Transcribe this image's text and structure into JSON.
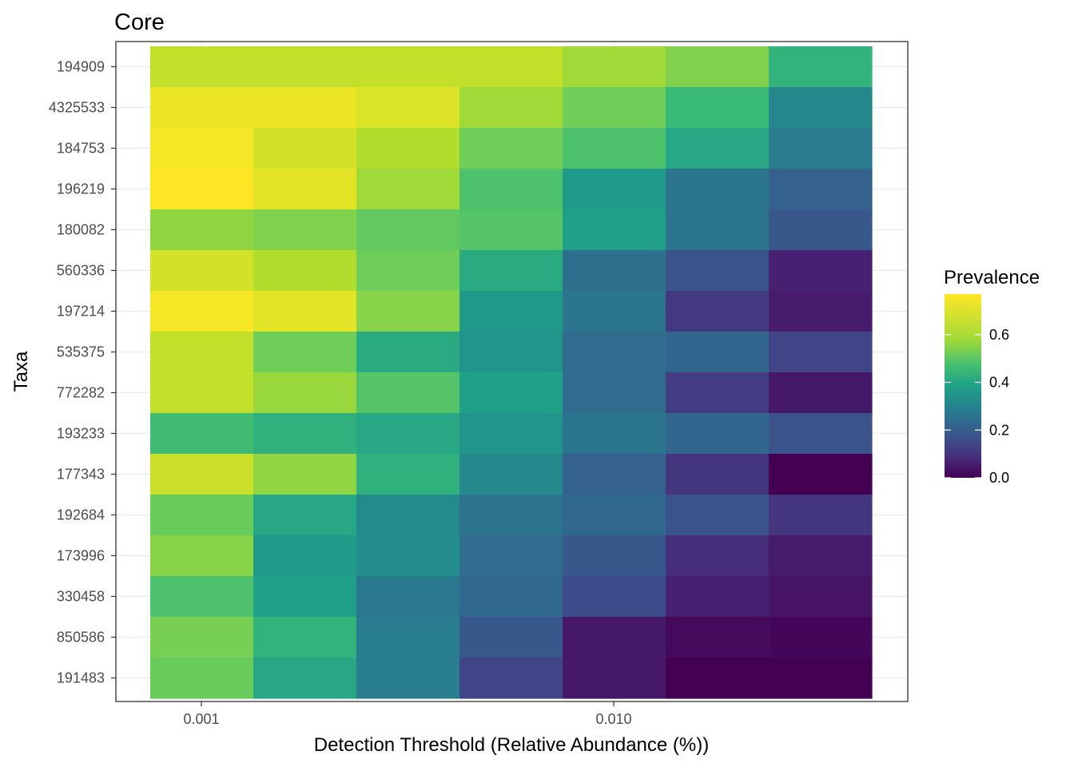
{
  "chart_data": {
    "type": "heatmap",
    "title": "Core",
    "xlabel": "Detection Threshold (Relative Abundance (%))",
    "ylabel": "Taxa",
    "x_scale": "log10",
    "x_ticks": [
      "0.001",
      "0.010"
    ],
    "y_categories": [
      "194909",
      "4325533",
      "184753",
      "196219",
      "180082",
      "560336",
      "197214",
      "535375",
      "772282",
      "193233",
      "177343",
      "192684",
      "173996",
      "330458",
      "850586",
      "191483"
    ],
    "legend": {
      "title": "Prevalence",
      "ticks": [
        "0.0",
        "0.2",
        "0.4",
        "0.6"
      ],
      "range": [
        0,
        0.77
      ],
      "colorscale": "viridis",
      "position": "right"
    },
    "grid": true,
    "values": [
      [
        0.7,
        0.7,
        0.7,
        0.7,
        0.66,
        0.62,
        0.5
      ],
      [
        0.75,
        0.75,
        0.73,
        0.66,
        0.6,
        0.52,
        0.36
      ],
      [
        0.76,
        0.72,
        0.68,
        0.6,
        0.55,
        0.46,
        0.32
      ],
      [
        0.77,
        0.74,
        0.66,
        0.55,
        0.42,
        0.3,
        0.24
      ],
      [
        0.64,
        0.62,
        0.58,
        0.56,
        0.43,
        0.3,
        0.21
      ],
      [
        0.72,
        0.68,
        0.6,
        0.47,
        0.28,
        0.2,
        0.07
      ],
      [
        0.76,
        0.74,
        0.63,
        0.41,
        0.3,
        0.13,
        0.06
      ],
      [
        0.7,
        0.6,
        0.47,
        0.4,
        0.27,
        0.25,
        0.16
      ],
      [
        0.7,
        0.65,
        0.56,
        0.43,
        0.27,
        0.14,
        0.05
      ],
      [
        0.53,
        0.49,
        0.46,
        0.4,
        0.3,
        0.25,
        0.2
      ],
      [
        0.71,
        0.64,
        0.49,
        0.36,
        0.24,
        0.12,
        0.0
      ],
      [
        0.59,
        0.46,
        0.37,
        0.29,
        0.26,
        0.2,
        0.12
      ],
      [
        0.63,
        0.42,
        0.38,
        0.27,
        0.21,
        0.1,
        0.06
      ],
      [
        0.55,
        0.43,
        0.31,
        0.26,
        0.18,
        0.07,
        0.04
      ],
      [
        0.61,
        0.5,
        0.33,
        0.21,
        0.05,
        0.02,
        0.01
      ],
      [
        0.59,
        0.46,
        0.33,
        0.16,
        0.05,
        0.0,
        0.0
      ]
    ]
  }
}
